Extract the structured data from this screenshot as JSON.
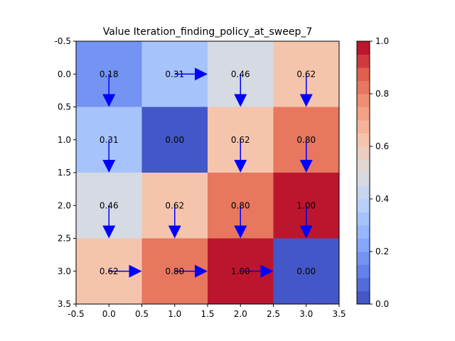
{
  "chart_data": {
    "type": "heatmap",
    "title": "Value Iteration_finding_policy_at_sweep_7",
    "xlabel": "",
    "ylabel": "",
    "xlim": [
      -0.5,
      3.5
    ],
    "ylim": [
      3.5,
      -0.5
    ],
    "x_ticks": [
      "-0.5",
      "0.0",
      "0.5",
      "1.0",
      "1.5",
      "2.0",
      "2.5",
      "3.0",
      "3.5"
    ],
    "y_ticks": [
      "-0.5",
      "0.0",
      "0.5",
      "1.0",
      "1.5",
      "2.0",
      "2.5",
      "3.0",
      "3.5"
    ],
    "values": [
      [
        0.18,
        0.31,
        0.46,
        0.62
      ],
      [
        0.31,
        0.0,
        0.62,
        0.8
      ],
      [
        0.46,
        0.62,
        0.8,
        1.0
      ],
      [
        0.62,
        0.8,
        1.0,
        0.0
      ]
    ],
    "labels": [
      [
        "0.18",
        "0.31",
        "0.46",
        "0.62"
      ],
      [
        "0.31",
        "0.00",
        "0.62",
        "0.80"
      ],
      [
        "0.46",
        "0.62",
        "0.80",
        "1.00"
      ],
      [
        "0.62",
        "0.80",
        "1.00",
        "0.00"
      ]
    ],
    "policy": [
      [
        "down",
        "right",
        "down",
        "down"
      ],
      [
        "down",
        "",
        "down",
        "down"
      ],
      [
        "down",
        "down",
        "down",
        "down"
      ],
      [
        "right",
        "right",
        "right",
        ""
      ]
    ],
    "arrow_color": "#0000ff",
    "colormap": "coolwarm",
    "colorbar": {
      "min": 0.0,
      "max": 1.0,
      "ticks": [
        "0.0",
        "0.2",
        "0.4",
        "0.6",
        "0.8",
        "1.0"
      ],
      "levels": 20
    },
    "grid": false
  }
}
